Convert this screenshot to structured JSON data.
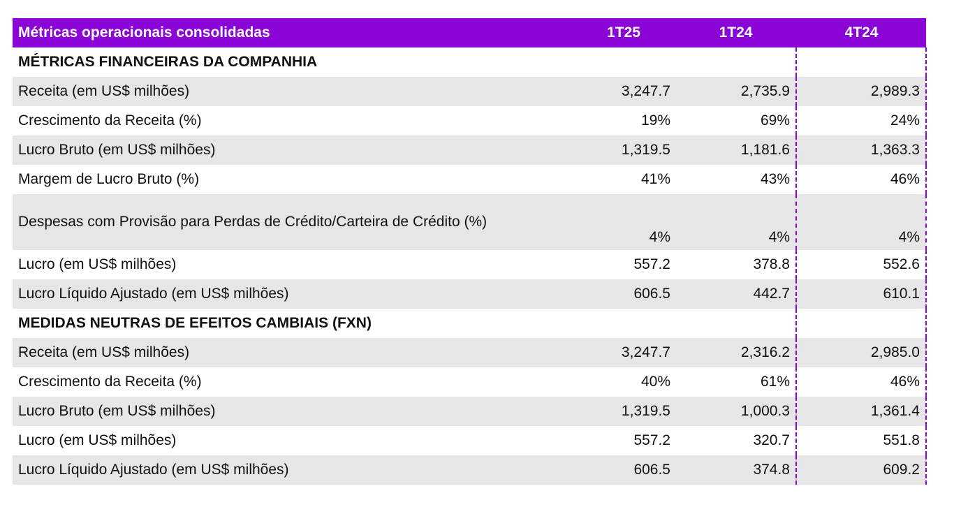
{
  "table": {
    "headers": {
      "label": "Métricas operacionais consolidadas",
      "col1": "1T25",
      "col2": "1T24",
      "col3": "4T24"
    },
    "rows": [
      {
        "type": "section",
        "label": "MÉTRICAS FINANCEIRAS DA COMPANHIA"
      },
      {
        "type": "data",
        "shade": true,
        "label": "Receita (em US$ milhões)",
        "values": [
          "3,247.7",
          "2,735.9",
          "2,989.3"
        ]
      },
      {
        "type": "data",
        "shade": false,
        "label": "Crescimento da Receita (%)",
        "values": [
          "19%",
          "69%",
          "24%"
        ]
      },
      {
        "type": "data",
        "shade": true,
        "label": "Lucro Bruto (em US$ milhões)",
        "values": [
          "1,319.5",
          "1,181.6",
          "1,363.3"
        ]
      },
      {
        "type": "data",
        "shade": false,
        "label": "Margem de Lucro Bruto (%)",
        "values": [
          "41%",
          "43%",
          "46%"
        ]
      },
      {
        "type": "data",
        "shade": true,
        "tall": true,
        "label": "Despesas com Provisão para Perdas de Crédito/Carteira de Crédito (%)",
        "values": [
          "4%",
          "4%",
          "4%"
        ]
      },
      {
        "type": "data",
        "shade": false,
        "label": "Lucro (em US$ milhões)",
        "values": [
          "557.2",
          "378.8",
          "552.6"
        ]
      },
      {
        "type": "data",
        "shade": true,
        "label": "Lucro Líquido Ajustado (em US$ milhões)",
        "values": [
          "606.5",
          "442.7",
          "610.1"
        ]
      },
      {
        "type": "section",
        "label": "MEDIDAS NEUTRAS DE EFEITOS CAMBIAIS (FXN)"
      },
      {
        "type": "data",
        "shade": true,
        "label": "Receita (em US$ milhões)",
        "values": [
          "3,247.7",
          "2,316.2",
          "2,985.0"
        ]
      },
      {
        "type": "data",
        "shade": false,
        "label": "Crescimento da Receita (%)",
        "values": [
          "40%",
          "61%",
          "46%"
        ]
      },
      {
        "type": "data",
        "shade": true,
        "label": "Lucro Bruto (em US$ milhões)",
        "values": [
          "1,319.5",
          "1,000.3",
          "1,361.4"
        ]
      },
      {
        "type": "data",
        "shade": false,
        "label": "Lucro (em US$ milhões)",
        "values": [
          "557.2",
          "320.7",
          "551.8"
        ]
      },
      {
        "type": "data",
        "shade": true,
        "label": "Lucro Líquido Ajustado (em US$ milhões)",
        "values": [
          "606.5",
          "374.8",
          "609.2"
        ]
      }
    ]
  },
  "colors": {
    "header_bg": "#8a05d6",
    "row_shade": "#e6e6e6",
    "divider": "#8a05d6"
  }
}
